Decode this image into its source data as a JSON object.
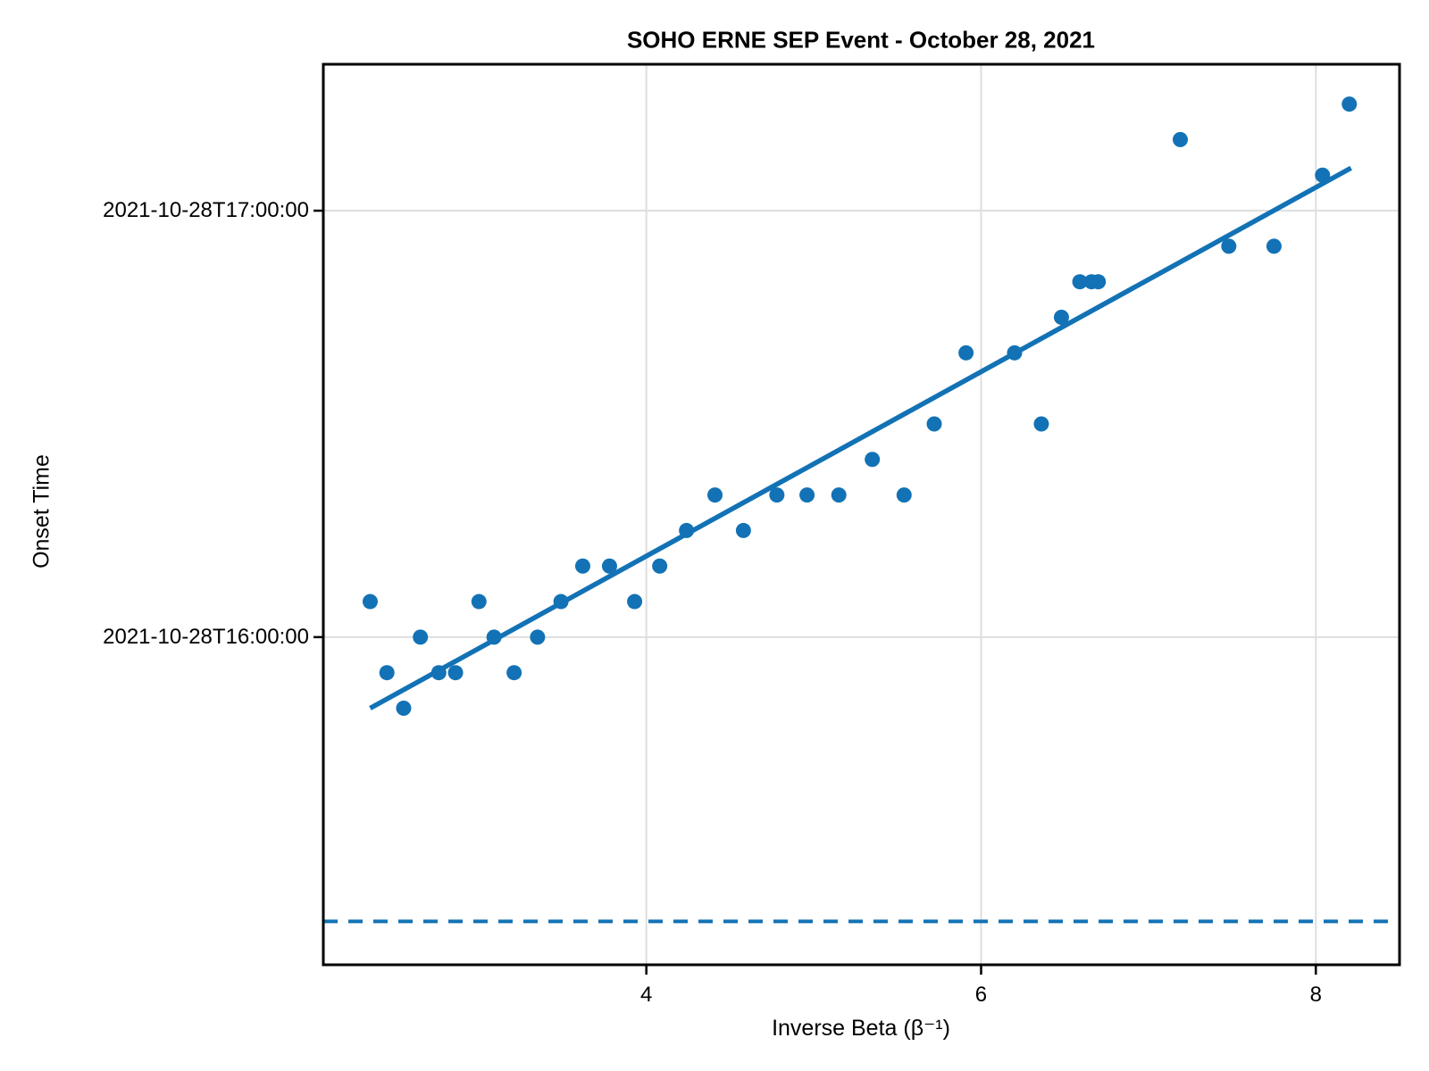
{
  "chart_data": {
    "type": "scatter",
    "title": "SOHO ERNE SEP Event - October 28, 2021",
    "xlabel": "Inverse Beta (β⁻¹)",
    "ylabel": "Onset Time",
    "date": "2021-10-28",
    "x_axis": {
      "min": 2.07,
      "max": 8.5,
      "ticks": [
        {
          "value": 4,
          "label": "4"
        },
        {
          "value": 6,
          "label": "6"
        },
        {
          "value": 8,
          "label": "8"
        }
      ]
    },
    "y_axis": {
      "min_minutes_since_midnight": 913.9,
      "max_minutes_since_midnight": 1040.6,
      "ticks": [
        {
          "time": "17:00",
          "label": "2021-10-28T17:00:00"
        },
        {
          "time": "16:00",
          "label": "2021-10-28T16:00:00"
        }
      ]
    },
    "grid": true,
    "legend": null,
    "points": [
      {
        "beta_inv": 2.35,
        "onset": "16:05"
      },
      {
        "beta_inv": 2.45,
        "onset": "15:55"
      },
      {
        "beta_inv": 2.55,
        "onset": "15:50"
      },
      {
        "beta_inv": 2.65,
        "onset": "16:00"
      },
      {
        "beta_inv": 2.76,
        "onset": "15:55"
      },
      {
        "beta_inv": 2.86,
        "onset": "15:55"
      },
      {
        "beta_inv": 3.0,
        "onset": "16:05"
      },
      {
        "beta_inv": 3.09,
        "onset": "16:00"
      },
      {
        "beta_inv": 3.21,
        "onset": "15:55"
      },
      {
        "beta_inv": 3.35,
        "onset": "16:00"
      },
      {
        "beta_inv": 3.49,
        "onset": "16:05"
      },
      {
        "beta_inv": 3.62,
        "onset": "16:10"
      },
      {
        "beta_inv": 3.78,
        "onset": "16:10"
      },
      {
        "beta_inv": 3.93,
        "onset": "16:05"
      },
      {
        "beta_inv": 4.08,
        "onset": "16:10"
      },
      {
        "beta_inv": 4.24,
        "onset": "16:15"
      },
      {
        "beta_inv": 4.41,
        "onset": "16:20"
      },
      {
        "beta_inv": 4.58,
        "onset": "16:15"
      },
      {
        "beta_inv": 4.78,
        "onset": "16:20"
      },
      {
        "beta_inv": 4.96,
        "onset": "16:20"
      },
      {
        "beta_inv": 5.15,
        "onset": "16:20"
      },
      {
        "beta_inv": 5.35,
        "onset": "16:25"
      },
      {
        "beta_inv": 5.54,
        "onset": "16:20"
      },
      {
        "beta_inv": 5.72,
        "onset": "16:30"
      },
      {
        "beta_inv": 5.91,
        "onset": "16:40"
      },
      {
        "beta_inv": 6.2,
        "onset": "16:40"
      },
      {
        "beta_inv": 6.36,
        "onset": "16:30"
      },
      {
        "beta_inv": 6.48,
        "onset": "16:45"
      },
      {
        "beta_inv": 6.59,
        "onset": "16:50"
      },
      {
        "beta_inv": 6.66,
        "onset": "16:50"
      },
      {
        "beta_inv": 6.7,
        "onset": "16:50"
      },
      {
        "beta_inv": 7.19,
        "onset": "17:10"
      },
      {
        "beta_inv": 7.48,
        "onset": "16:55"
      },
      {
        "beta_inv": 7.75,
        "onset": "16:55"
      },
      {
        "beta_inv": 8.04,
        "onset": "17:05"
      },
      {
        "beta_inv": 8.2,
        "onset": "17:15"
      }
    ],
    "fit_line": {
      "start": {
        "beta_inv": 2.35,
        "onset": "15:50"
      },
      "end": {
        "beta_inv": 8.21,
        "onset": "17:06"
      }
    },
    "release_line": {
      "onset": "15:20",
      "style": "dashed"
    },
    "colors": {
      "data": "#1272b5",
      "grid": "#dedede",
      "frame": "#000000",
      "text": "#000000"
    }
  }
}
